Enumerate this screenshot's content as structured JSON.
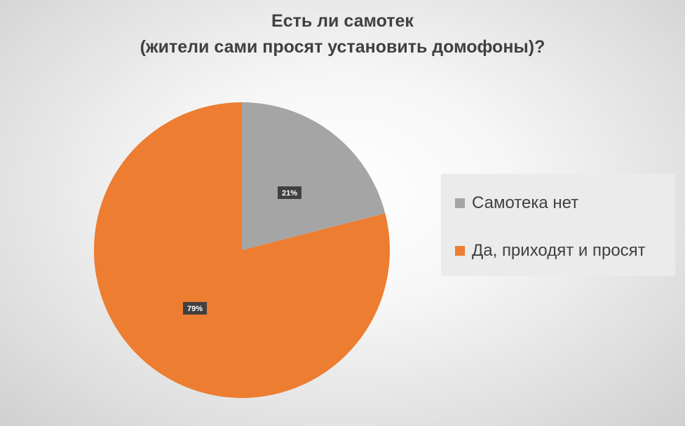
{
  "chart_data": {
    "type": "pie",
    "title_lines": [
      "Есть ли самотек",
      "(жители сами просят установить домофоны)?"
    ],
    "categories": [
      "Самотека нет",
      "Да, приходят и просят"
    ],
    "values": [
      21,
      79
    ],
    "data_labels": [
      "21%",
      "79%"
    ],
    "colors": [
      "#a5a5a5",
      "#ed7d31"
    ],
    "start_angle_deg": 0,
    "direction": "clockwise",
    "legend_position": "right"
  }
}
